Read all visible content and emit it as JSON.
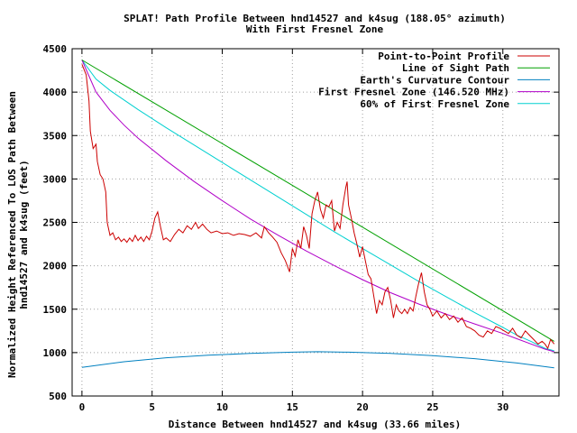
{
  "chart_data": {
    "type": "line",
    "title": [
      "SPLAT! Path Profile Between hnd14527 and k4sug (188.05° azimuth)",
      "With First Fresnel Zone"
    ],
    "xlabel": "Distance Between hnd14527 and k4sug (33.66 miles)",
    "ylabel": [
      "Normalized Height Referenced To LOS Path Between",
      "hnd14527 and k4sug (feet)"
    ],
    "xlim": [
      -0.7,
      34.0
    ],
    "ylim": [
      500,
      4500
    ],
    "xticks": [
      0,
      5,
      10,
      15,
      20,
      25,
      30
    ],
    "yticks": [
      500,
      1000,
      1500,
      2000,
      2500,
      3000,
      3500,
      4000,
      4500
    ],
    "grid": true,
    "legend_position": "top-right",
    "series": [
      {
        "name": "Point-to-Point Profile",
        "color": "#cc0000",
        "points": [
          [
            0,
            4320
          ],
          [
            0.3,
            4200
          ],
          [
            0.5,
            3900
          ],
          [
            0.6,
            3550
          ],
          [
            0.8,
            3350
          ],
          [
            1.0,
            3400
          ],
          [
            1.1,
            3200
          ],
          [
            1.3,
            3050
          ],
          [
            1.5,
            3000
          ],
          [
            1.7,
            2850
          ],
          [
            1.8,
            2500
          ],
          [
            2.0,
            2350
          ],
          [
            2.2,
            2380
          ],
          [
            2.4,
            2300
          ],
          [
            2.6,
            2330
          ],
          [
            2.8,
            2280
          ],
          [
            3.0,
            2310
          ],
          [
            3.2,
            2270
          ],
          [
            3.4,
            2320
          ],
          [
            3.6,
            2280
          ],
          [
            3.8,
            2350
          ],
          [
            4.0,
            2290
          ],
          [
            4.2,
            2330
          ],
          [
            4.4,
            2280
          ],
          [
            4.6,
            2340
          ],
          [
            4.8,
            2300
          ],
          [
            5.0,
            2400
          ],
          [
            5.2,
            2550
          ],
          [
            5.4,
            2620
          ],
          [
            5.6,
            2450
          ],
          [
            5.8,
            2300
          ],
          [
            6.0,
            2320
          ],
          [
            6.3,
            2280
          ],
          [
            6.6,
            2360
          ],
          [
            6.9,
            2420
          ],
          [
            7.2,
            2380
          ],
          [
            7.5,
            2460
          ],
          [
            7.8,
            2420
          ],
          [
            8.1,
            2500
          ],
          [
            8.3,
            2430
          ],
          [
            8.6,
            2480
          ],
          [
            8.9,
            2420
          ],
          [
            9.2,
            2380
          ],
          [
            9.6,
            2400
          ],
          [
            10.0,
            2370
          ],
          [
            10.4,
            2380
          ],
          [
            10.8,
            2350
          ],
          [
            11.2,
            2370
          ],
          [
            11.6,
            2360
          ],
          [
            12.0,
            2340
          ],
          [
            12.4,
            2380
          ],
          [
            12.8,
            2320
          ],
          [
            13.0,
            2450
          ],
          [
            13.3,
            2380
          ],
          [
            13.6,
            2330
          ],
          [
            13.9,
            2270
          ],
          [
            14.2,
            2150
          ],
          [
            14.5,
            2060
          ],
          [
            14.8,
            1930
          ],
          [
            15.0,
            2200
          ],
          [
            15.2,
            2110
          ],
          [
            15.4,
            2300
          ],
          [
            15.6,
            2200
          ],
          [
            15.8,
            2450
          ],
          [
            16.0,
            2350
          ],
          [
            16.2,
            2200
          ],
          [
            16.4,
            2600
          ],
          [
            16.6,
            2750
          ],
          [
            16.8,
            2850
          ],
          [
            17.0,
            2650
          ],
          [
            17.2,
            2550
          ],
          [
            17.4,
            2700
          ],
          [
            17.6,
            2680
          ],
          [
            17.8,
            2750
          ],
          [
            18.0,
            2400
          ],
          [
            18.2,
            2500
          ],
          [
            18.4,
            2430
          ],
          [
            18.6,
            2700
          ],
          [
            18.8,
            2900
          ],
          [
            18.9,
            2970
          ],
          [
            19.0,
            2700
          ],
          [
            19.2,
            2550
          ],
          [
            19.4,
            2380
          ],
          [
            19.6,
            2250
          ],
          [
            19.8,
            2100
          ],
          [
            20.0,
            2220
          ],
          [
            20.2,
            2060
          ],
          [
            20.4,
            1900
          ],
          [
            20.6,
            1850
          ],
          [
            20.8,
            1650
          ],
          [
            21.0,
            1450
          ],
          [
            21.2,
            1600
          ],
          [
            21.4,
            1550
          ],
          [
            21.6,
            1700
          ],
          [
            21.8,
            1750
          ],
          [
            22.0,
            1600
          ],
          [
            22.2,
            1400
          ],
          [
            22.4,
            1550
          ],
          [
            22.6,
            1480
          ],
          [
            22.8,
            1450
          ],
          [
            23.0,
            1500
          ],
          [
            23.2,
            1450
          ],
          [
            23.4,
            1520
          ],
          [
            23.6,
            1480
          ],
          [
            23.8,
            1650
          ],
          [
            24.0,
            1800
          ],
          [
            24.2,
            1920
          ],
          [
            24.4,
            1700
          ],
          [
            24.6,
            1550
          ],
          [
            24.8,
            1500
          ],
          [
            25.0,
            1420
          ],
          [
            25.3,
            1480
          ],
          [
            25.6,
            1400
          ],
          [
            25.9,
            1450
          ],
          [
            26.2,
            1380
          ],
          [
            26.5,
            1420
          ],
          [
            26.8,
            1350
          ],
          [
            27.1,
            1400
          ],
          [
            27.4,
            1300
          ],
          [
            27.7,
            1280
          ],
          [
            28.0,
            1250
          ],
          [
            28.3,
            1200
          ],
          [
            28.6,
            1180
          ],
          [
            28.9,
            1250
          ],
          [
            29.2,
            1220
          ],
          [
            29.5,
            1300
          ],
          [
            29.8,
            1280
          ],
          [
            30.1,
            1250
          ],
          [
            30.4,
            1220
          ],
          [
            30.7,
            1280
          ],
          [
            31.0,
            1200
          ],
          [
            31.3,
            1170
          ],
          [
            31.6,
            1250
          ],
          [
            31.9,
            1200
          ],
          [
            32.2,
            1150
          ],
          [
            32.5,
            1100
          ],
          [
            32.8,
            1130
          ],
          [
            33.0,
            1100
          ],
          [
            33.2,
            1050
          ],
          [
            33.4,
            1150
          ],
          [
            33.66,
            1100
          ]
        ]
      },
      {
        "name": "Line of Sight Path",
        "color": "#00a000",
        "points": [
          [
            0,
            4370
          ],
          [
            33.66,
            1130
          ]
        ]
      },
      {
        "name": "Earth's Curvature Contour",
        "color": "#0080c0",
        "points": [
          [
            0,
            830
          ],
          [
            3,
            895
          ],
          [
            6,
            940
          ],
          [
            9,
            970
          ],
          [
            12,
            990
          ],
          [
            15,
            1005
          ],
          [
            16.8,
            1010
          ],
          [
            19,
            1005
          ],
          [
            22,
            990
          ],
          [
            25,
            965
          ],
          [
            28,
            930
          ],
          [
            31,
            880
          ],
          [
            33.66,
            825
          ]
        ]
      },
      {
        "name": "First Fresnel Zone (146.520 MHz)",
        "color": "#b000c8",
        "points": [
          [
            0,
            4370
          ],
          [
            1,
            4000
          ],
          [
            2,
            3790
          ],
          [
            3,
            3620
          ],
          [
            4,
            3470
          ],
          [
            6,
            3210
          ],
          [
            8,
            2970
          ],
          [
            10,
            2750
          ],
          [
            12,
            2540
          ],
          [
            14,
            2350
          ],
          [
            16,
            2170
          ],
          [
            18,
            2000
          ],
          [
            20,
            1840
          ],
          [
            22,
            1690
          ],
          [
            24,
            1560
          ],
          [
            26,
            1440
          ],
          [
            28,
            1330
          ],
          [
            30,
            1220
          ],
          [
            31,
            1160
          ],
          [
            32,
            1100
          ],
          [
            33,
            1040
          ],
          [
            33.66,
            1010
          ]
        ]
      },
      {
        "name": "60% of First Fresnel Zone",
        "color": "#00d0d0",
        "points": [
          [
            0,
            4370
          ],
          [
            1,
            4150
          ],
          [
            2,
            4020
          ],
          [
            4,
            3800
          ],
          [
            6,
            3590
          ],
          [
            8,
            3390
          ],
          [
            10,
            3190
          ],
          [
            12,
            2990
          ],
          [
            14,
            2790
          ],
          [
            16,
            2590
          ],
          [
            18,
            2390
          ],
          [
            20,
            2200
          ],
          [
            22,
            2010
          ],
          [
            24,
            1820
          ],
          [
            26,
            1640
          ],
          [
            28,
            1460
          ],
          [
            30,
            1290
          ],
          [
            31,
            1200
          ],
          [
            32,
            1130
          ],
          [
            33,
            1050
          ],
          [
            33.66,
            1020
          ]
        ]
      }
    ]
  }
}
